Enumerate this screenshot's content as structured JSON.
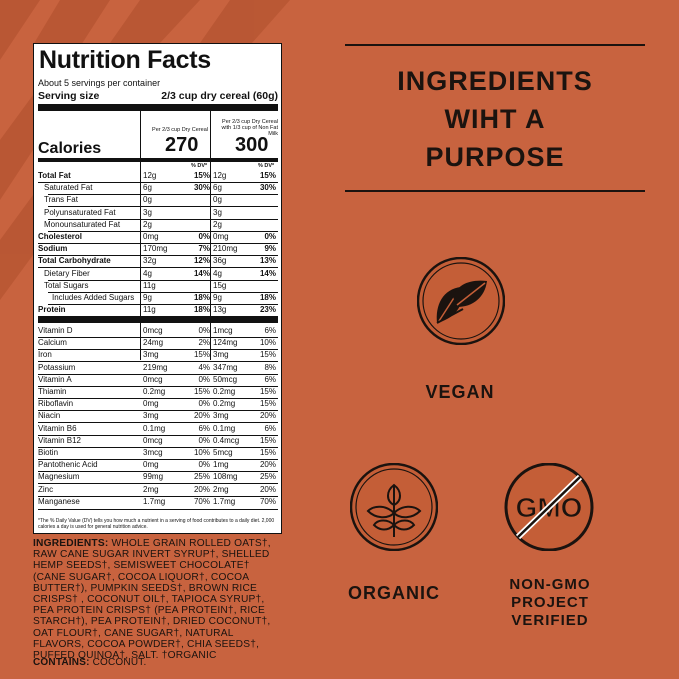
{
  "headline": [
    "INGREDIENTS",
    "WIHT A",
    "PURPOSE"
  ],
  "badges": {
    "vegan": "VEGAN",
    "organic": "ORGANIC",
    "non_gmo_line1": "NON-GMO",
    "non_gmo_line2": "PROJECT VERIFIED",
    "gmo_text": "GMO"
  },
  "nutrition": {
    "title": "Nutrition Facts",
    "servings": "About 5 servings per container",
    "serving_size_label": "Serving size",
    "serving_size_value": "2/3 cup dry cereal (60g)",
    "col1_head": "Per 2/3 cup Dry Cereal",
    "col2_head": "Per 2/3 cup Dry Cereal with 1/3 cup of Non Fat Milk",
    "calories_label": "Calories",
    "calories_1": "270",
    "calories_2": "300",
    "dv_head": "% DV*",
    "nutrients": [
      {
        "name": "Total Fat",
        "bold": true,
        "a1": "12g",
        "p1": "15%",
        "a2": "12g",
        "p2": "15%"
      },
      {
        "name": "Saturated Fat",
        "indent": 1,
        "a1": "6g",
        "p1": "30%",
        "a2": "6g",
        "p2": "30%"
      },
      {
        "name": "Trans Fat",
        "indent": 1,
        "a1": "0g",
        "p1": "",
        "a2": "0g",
        "p2": ""
      },
      {
        "name": "Polyunsaturated Fat",
        "indent": 1,
        "a1": "3g",
        "p1": "",
        "a2": "3g",
        "p2": ""
      },
      {
        "name": "Monounsaturated Fat",
        "indent": 1,
        "a1": "2g",
        "p1": "",
        "a2": "2g",
        "p2": ""
      },
      {
        "name": "Cholesterol",
        "bold": true,
        "a1": "0mg",
        "p1": "0%",
        "a2": "0mg",
        "p2": "0%"
      },
      {
        "name": "Sodium",
        "bold": true,
        "a1": "170mg",
        "p1": "7%",
        "a2": "210mg",
        "p2": "9%"
      },
      {
        "name": "Total Carbohydrate",
        "bold": true,
        "a1": "32g",
        "p1": "12%",
        "a2": "36g",
        "p2": "13%"
      },
      {
        "name": "Dietary Fiber",
        "indent": 1,
        "a1": "4g",
        "p1": "14%",
        "a2": "4g",
        "p2": "14%"
      },
      {
        "name": "Total Sugars",
        "indent": 1,
        "a1": "11g",
        "p1": "",
        "a2": "15g",
        "p2": ""
      },
      {
        "name": "Includes Added Sugars",
        "indent": 2,
        "a1": "9g",
        "p1": "18%",
        "a2": "9g",
        "p2": "18%"
      },
      {
        "name": "Protein",
        "bold": true,
        "a1": "11g",
        "p1": "18%",
        "a2": "13g",
        "p2": "23%"
      }
    ],
    "vitamins": [
      {
        "name": "Vitamin D",
        "a1": "0mcg",
        "p1": "0%",
        "a2": "1mcg",
        "p2": "6%"
      },
      {
        "name": "Calcium",
        "a1": "24mg",
        "p1": "2%",
        "a2": "124mg",
        "p2": "10%"
      },
      {
        "name": "Iron",
        "a1": "3mg",
        "p1": "15%",
        "a2": "3mg",
        "p2": "15%"
      },
      {
        "name": "Potassium",
        "a1": "219mg",
        "p1": "4%",
        "a2": "347mg",
        "p2": "8%"
      },
      {
        "name": "Vitamin A",
        "a1": "0mcg",
        "p1": "0%",
        "a2": "50mcg",
        "p2": "6%"
      },
      {
        "name": "Thiamin",
        "a1": "0.2mg",
        "p1": "15%",
        "a2": "0.2mg",
        "p2": "15%"
      },
      {
        "name": "Riboflavin",
        "a1": "0mg",
        "p1": "0%",
        "a2": "0.2mg",
        "p2": "15%"
      },
      {
        "name": "Niacin",
        "a1": "3mg",
        "p1": "20%",
        "a2": "3mg",
        "p2": "20%"
      },
      {
        "name": "Vitamin B6",
        "a1": "0.1mg",
        "p1": "6%",
        "a2": "0.1mg",
        "p2": "6%"
      },
      {
        "name": "Vitamin B12",
        "a1": "0mcg",
        "p1": "0%",
        "a2": "0.4mcg",
        "p2": "15%"
      },
      {
        "name": "Biotin",
        "a1": "3mcg",
        "p1": "10%",
        "a2": "5mcg",
        "p2": "15%"
      },
      {
        "name": "Pantothenic Acid",
        "a1": "0mg",
        "p1": "0%",
        "a2": "1mg",
        "p2": "20%"
      },
      {
        "name": "Magnesium",
        "a1": "99mg",
        "p1": "25%",
        "a2": "108mg",
        "p2": "25%"
      },
      {
        "name": "Zinc",
        "a1": "2mg",
        "p1": "20%",
        "a2": "2mg",
        "p2": "20%"
      },
      {
        "name": "Manganese",
        "a1": "1.7mg",
        "p1": "70%",
        "a2": "1.7mg",
        "p2": "70%"
      }
    ],
    "footnote": "*The % Daily Value (DV) tells you how much a nutrient in a serving of food contributes to a daily diet. 2,000 calories a day is used for general nutrition advice."
  },
  "ingredients_label": "INGREDIENTS:",
  "ingredients_text": "WHOLE GRAIN ROLLED OATS†, RAW CANE SUGAR INVERT SYRUP†, SHELLED HEMP SEEDS†, SEMISWEET CHOCOLATE† (CANE SUGAR†, COCOA LIQUOR†, COCOA BUTTER†), PUMPKIN SEEDS†, BROWN RICE CRISPS† , COCONUT OIL†, TAPIOCA SYRUP†, PEA PROTEIN CRISPS† (PEA PROTEIN†, RICE STARCH†), PEA PROTEIN†, DRIED COCONUT†, OAT FLOUR†, CANE SUGAR†, NATURAL FLAVORS, COCOA POWDER†, CHIA SEEDS†, PUFFED QUINOA†, SALT. †ORGANIC",
  "contains_label": "CONTAINS:",
  "contains_text": "COCONUT.",
  "colors": {
    "background": "#c8633f",
    "dark": "#1b130f",
    "badge": "#c45e37"
  }
}
